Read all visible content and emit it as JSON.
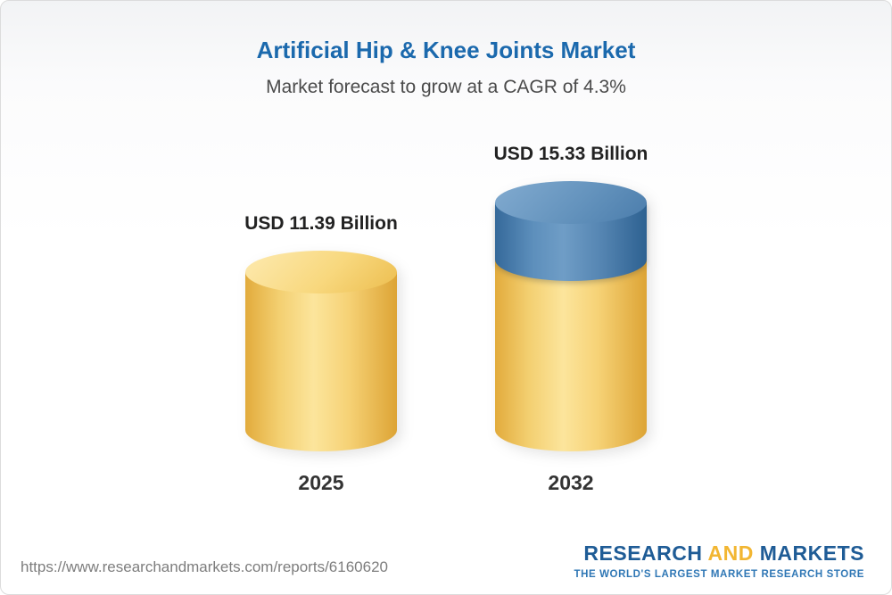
{
  "title": "Artificial Hip & Knee Joints Market",
  "subtitle": "Market forecast to grow at a CAGR of 4.3%",
  "chart_data": {
    "type": "bar",
    "categories": [
      "2025",
      "2032"
    ],
    "values": [
      11.39,
      15.33
    ],
    "value_labels": [
      "USD 11.39 Billion",
      "USD 15.33 Billion"
    ],
    "unit": "USD Billion",
    "title": "Artificial Hip & Knee Joints Market",
    "subtitle": "Market forecast to grow at a CAGR of 4.3%",
    "cagr_percent": 4.3,
    "xlabel": "",
    "ylabel": "",
    "ylim": [
      0,
      15.33
    ],
    "legend": "none",
    "grid": false,
    "bar_style": "3d-cylinder",
    "colors": {
      "bar_base_yellow": "#F2CB5E",
      "bar_growth_blue": "#5585B2",
      "title_blue": "#1B69AD"
    },
    "notes": "2032 cylinder shows growth segment (15.33 - 11.39 = 3.94) in blue stacked on yellow base"
  },
  "footer": {
    "url": "https://www.researchandmarkets.com/reports/6160620",
    "logo": {
      "word1": "RESEARCH",
      "word2": "AND",
      "word3": "MARKETS",
      "tagline": "THE WORLD'S LARGEST MARKET RESEARCH STORE"
    }
  }
}
